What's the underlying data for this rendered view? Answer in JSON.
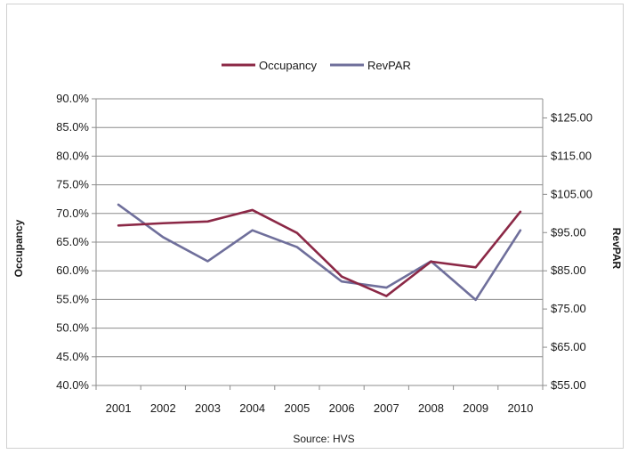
{
  "chart_data": {
    "type": "line",
    "categories": [
      "2001",
      "2002",
      "2003",
      "2004",
      "2005",
      "2006",
      "2007",
      "2008",
      "2009",
      "2010"
    ],
    "series": [
      {
        "name": "Occupancy",
        "axis": "left",
        "color": "#8b2846",
        "values": [
          67.9,
          68.3,
          68.6,
          70.6,
          66.6,
          59.0,
          55.6,
          61.6,
          60.6,
          70.3
        ]
      },
      {
        "name": "RevPAR",
        "axis": "right",
        "color": "#6f6f9b",
        "values": [
          102.3,
          93.8,
          87.5,
          95.6,
          91.2,
          82.2,
          80.6,
          87.5,
          77.4,
          95.6
        ]
      }
    ],
    "left_axis": {
      "label": "Occupancy",
      "min": 40,
      "max": 90,
      "step": 5,
      "ticks": [
        "40.0%",
        "45.0%",
        "50.0%",
        "55.0%",
        "60.0%",
        "65.0%",
        "70.0%",
        "75.0%",
        "80.0%",
        "85.0%",
        "90.0%"
      ]
    },
    "right_axis": {
      "label": "RevPAR",
      "min": 55,
      "max": 130,
      "step": 10,
      "ticks": [
        "$55.00",
        "$65.00",
        "$75.00",
        "$85.00",
        "$95.00",
        "$105.00",
        "$115.00",
        "$125.00"
      ]
    },
    "xlabel": "",
    "title": "",
    "source": "Source: HVS",
    "grid": true,
    "legend_position": "top"
  }
}
